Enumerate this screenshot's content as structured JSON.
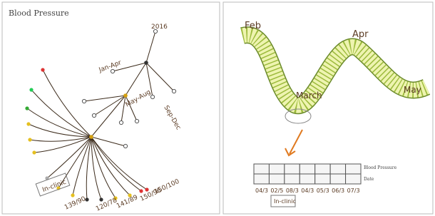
{
  "left": {
    "title": "Blood Pressure",
    "year": "2016",
    "periods": [
      "Jan-Apr",
      "May-Aug",
      "Sep-Dec"
    ],
    "readings": [
      "139/90",
      "120/78",
      "141/89",
      "150/96",
      "150/100"
    ],
    "note": "In-clinic"
  },
  "right": {
    "months": [
      "Feb",
      "March",
      "Apr",
      "May"
    ],
    "rows": [
      "Blood Pressure",
      "Date"
    ],
    "dates": [
      "04/3",
      "02/5",
      "08/3",
      "04/3",
      "05/3",
      "06/3",
      "07/3"
    ],
    "note": "In-clinic"
  }
}
